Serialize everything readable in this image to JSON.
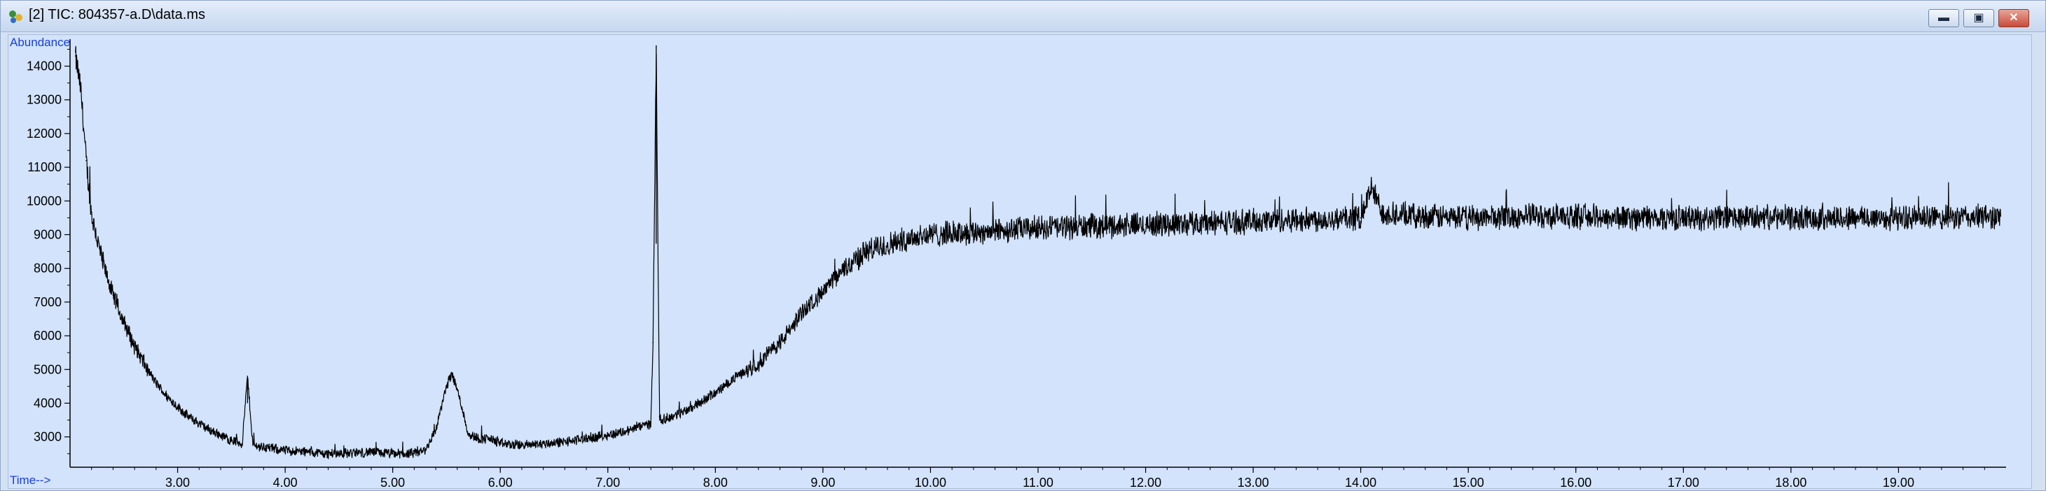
{
  "window": {
    "title": "[2] TIC: 804357-a.D\\data.ms",
    "icon": "chromatogram-app-icon",
    "buttons": {
      "minimize": "▬",
      "restore": "▣",
      "close": "✕"
    }
  },
  "chart_data": {
    "type": "line",
    "title": "",
    "ylabel": "Abundance",
    "xlabel": "Time-->",
    "xlim": [
      2.0,
      20.0
    ],
    "ylim": [
      2100,
      14800
    ],
    "x_ticks": [
      "3.00",
      "4.00",
      "5.00",
      "6.00",
      "7.00",
      "8.00",
      "9.00",
      "10.00",
      "11.00",
      "12.00",
      "13.00",
      "14.00",
      "15.00",
      "16.00",
      "17.00",
      "18.00",
      "19.00"
    ],
    "y_ticks": [
      "3000",
      "4000",
      "5000",
      "6000",
      "7000",
      "8000",
      "9000",
      "10000",
      "11000",
      "12000",
      "13000",
      "14000"
    ],
    "grid": false,
    "line_color": "#000000",
    "axis_label_color": "#1a3fd6",
    "series": [
      {
        "x": [
          2.05,
          2.1,
          2.15,
          2.2,
          2.3,
          2.4,
          2.5,
          2.6,
          2.7,
          2.8,
          2.9,
          3.0,
          3.1,
          3.2,
          3.3,
          3.4,
          3.5,
          3.6,
          3.65,
          3.7,
          3.8,
          3.9,
          4.0,
          4.2,
          4.4,
          4.6,
          4.8,
          5.0,
          5.2,
          5.3,
          5.4,
          5.5,
          5.55,
          5.6,
          5.65,
          5.7,
          5.8,
          5.9,
          6.0,
          6.2,
          6.4,
          6.6,
          6.8,
          7.0,
          7.2,
          7.4,
          7.42,
          7.45,
          7.48,
          7.5,
          7.6,
          7.8,
          7.9,
          8.0,
          8.2,
          8.3,
          8.4,
          8.6,
          8.7,
          8.8,
          9.0,
          9.2,
          9.4,
          9.6,
          9.8,
          10.0,
          10.5,
          11.0,
          11.5,
          12.0,
          12.5,
          13.0,
          13.5,
          14.0,
          14.1,
          14.2,
          14.5,
          15.0,
          15.5,
          16.0,
          16.5,
          17.0,
          17.5,
          18.0,
          18.5,
          19.0,
          19.5,
          19.95
        ],
        "y": [
          14300,
          13300,
          11200,
          9600,
          8200,
          7200,
          6400,
          5700,
          5100,
          4600,
          4200,
          3900,
          3600,
          3400,
          3200,
          3050,
          2900,
          2800,
          4800,
          2750,
          2700,
          2650,
          2600,
          2550,
          2500,
          2520,
          2550,
          2500,
          2500,
          2600,
          3200,
          4500,
          4900,
          4400,
          3800,
          3100,
          2950,
          2950,
          2800,
          2750,
          2800,
          2850,
          2950,
          3050,
          3200,
          3400,
          5800,
          14600,
          3600,
          3500,
          3600,
          3900,
          4100,
          4300,
          4800,
          5000,
          5200,
          5800,
          6200,
          6700,
          7300,
          8000,
          8500,
          8700,
          8900,
          9000,
          9100,
          9200,
          9250,
          9300,
          9350,
          9400,
          9450,
          9500,
          10400,
          9650,
          9550,
          9500,
          9550,
          9550,
          9500,
          9500,
          9500,
          9500,
          9500,
          9500,
          9500,
          9550
        ]
      }
    ],
    "annotations": []
  }
}
